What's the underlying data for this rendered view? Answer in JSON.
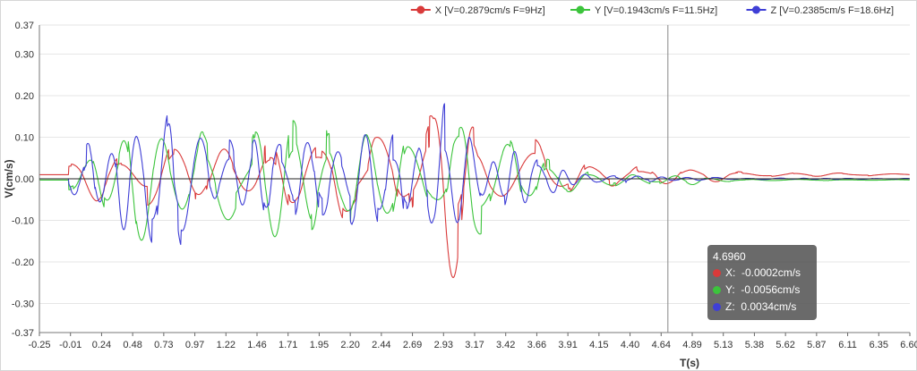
{
  "chart_data": {
    "type": "line",
    "title": "",
    "xlabel": "T(s)",
    "ylabel": "V(cm/s)",
    "xlim": [
      -0.25,
      6.6
    ],
    "ylim": [
      -0.37,
      0.37
    ],
    "x_tick_labels": [
      "-0.25",
      "-0.01",
      "0.24",
      "0.48",
      "0.73",
      "0.97",
      "1.22",
      "1.46",
      "1.71",
      "1.95",
      "2.20",
      "2.44",
      "2.69",
      "2.93",
      "3.17",
      "3.42",
      "3.66",
      "3.91",
      "4.15",
      "4.40",
      "4.64",
      "4.89",
      "5.13",
      "5.38",
      "5.62",
      "5.87",
      "6.11",
      "6.35",
      "6.60"
    ],
    "y_tick_labels": [
      "0.37",
      "0.30",
      "0.20",
      "0.10",
      "0.00",
      "-0.10",
      "-0.20",
      "-0.30",
      "-0.37"
    ],
    "y_tick_values": [
      0.37,
      0.3,
      0.2,
      0.1,
      0.0,
      -0.1,
      -0.2,
      -0.3,
      -0.37
    ],
    "grid": true,
    "legend_position": "top-right",
    "series": [
      {
        "name": "X [V=0.2879cm/s F=9Hz]",
        "color": "#d93a3a",
        "offset": 0.01,
        "x": [
          -0.25,
          0.2,
          0.5,
          0.8,
          1.1,
          1.4,
          1.7,
          2.0,
          2.3,
          2.6,
          2.85,
          2.95,
          3.05,
          3.13,
          3.2,
          3.3,
          3.5,
          3.7,
          3.9,
          4.1,
          4.3,
          4.5,
          4.7,
          4.9,
          5.1,
          5.3,
          6.6
        ],
        "env": [
          0,
          0.06,
          0.07,
          0.1,
          0.07,
          0.07,
          0.1,
          0.1,
          0.12,
          0.11,
          0.14,
          0.27,
          0.22,
          0.29,
          0.12,
          0.12,
          0.13,
          0.12,
          0.05,
          0.035,
          0.025,
          0.02,
          0.02,
          0.02,
          0.015,
          0.005,
          0.003
        ],
        "freq": 9
      },
      {
        "name": "Y [V=0.1943cm/s F=11.5Hz]",
        "color": "#3cc43c",
        "offset": -0.003,
        "x": [
          -0.25,
          0.2,
          0.5,
          0.8,
          1.1,
          1.4,
          1.7,
          2.0,
          2.3,
          2.6,
          2.85,
          2.95,
          3.05,
          3.13,
          3.2,
          3.3,
          3.5,
          3.7,
          3.9,
          4.1,
          4.3,
          4.5,
          4.7,
          4.9,
          5.1,
          5.3,
          6.6
        ],
        "env": [
          0,
          0.07,
          0.17,
          0.1,
          0.12,
          0.1,
          0.19,
          0.12,
          0.15,
          0.12,
          0.1,
          0.14,
          0.12,
          0.18,
          0.14,
          0.1,
          0.1,
          0.08,
          0.03,
          0.02,
          0.015,
          0.01,
          0.012,
          0.01,
          0.005,
          0.002,
          0.001
        ],
        "freq": 11.5
      },
      {
        "name": "Z [V=0.2385cm/s F=18.6Hz]",
        "color": "#3f3fd6",
        "offset": 0.0,
        "x": [
          -0.25,
          0.2,
          0.5,
          0.8,
          1.1,
          1.4,
          1.7,
          2.0,
          2.3,
          2.6,
          2.85,
          2.95,
          3.05,
          3.13,
          3.2,
          3.3,
          3.5,
          3.7,
          3.9,
          4.1,
          4.3,
          4.5,
          4.7,
          4.9,
          5.1,
          5.3,
          6.6
        ],
        "env": [
          0,
          0.1,
          0.13,
          0.17,
          0.1,
          0.1,
          0.11,
          0.1,
          0.12,
          0.12,
          0.11,
          0.2,
          0.24,
          0.22,
          0.11,
          0.1,
          0.09,
          0.06,
          0.02,
          0.01,
          0.01,
          0.008,
          0.006,
          0.004,
          0.003,
          0.002,
          0.001
        ],
        "freq": 18.6
      }
    ],
    "crosshair_x": 4.696,
    "tooltip": {
      "title": "4.6960",
      "rows": [
        {
          "label": "X:",
          "value": "-0.0002cm/s",
          "color": "#d93a3a"
        },
        {
          "label": "Y:",
          "value": "-0.0056cm/s",
          "color": "#3cc43c"
        },
        {
          "label": "Z:",
          "value": "0.0034cm/s",
          "color": "#3f3fd6"
        }
      ]
    }
  }
}
